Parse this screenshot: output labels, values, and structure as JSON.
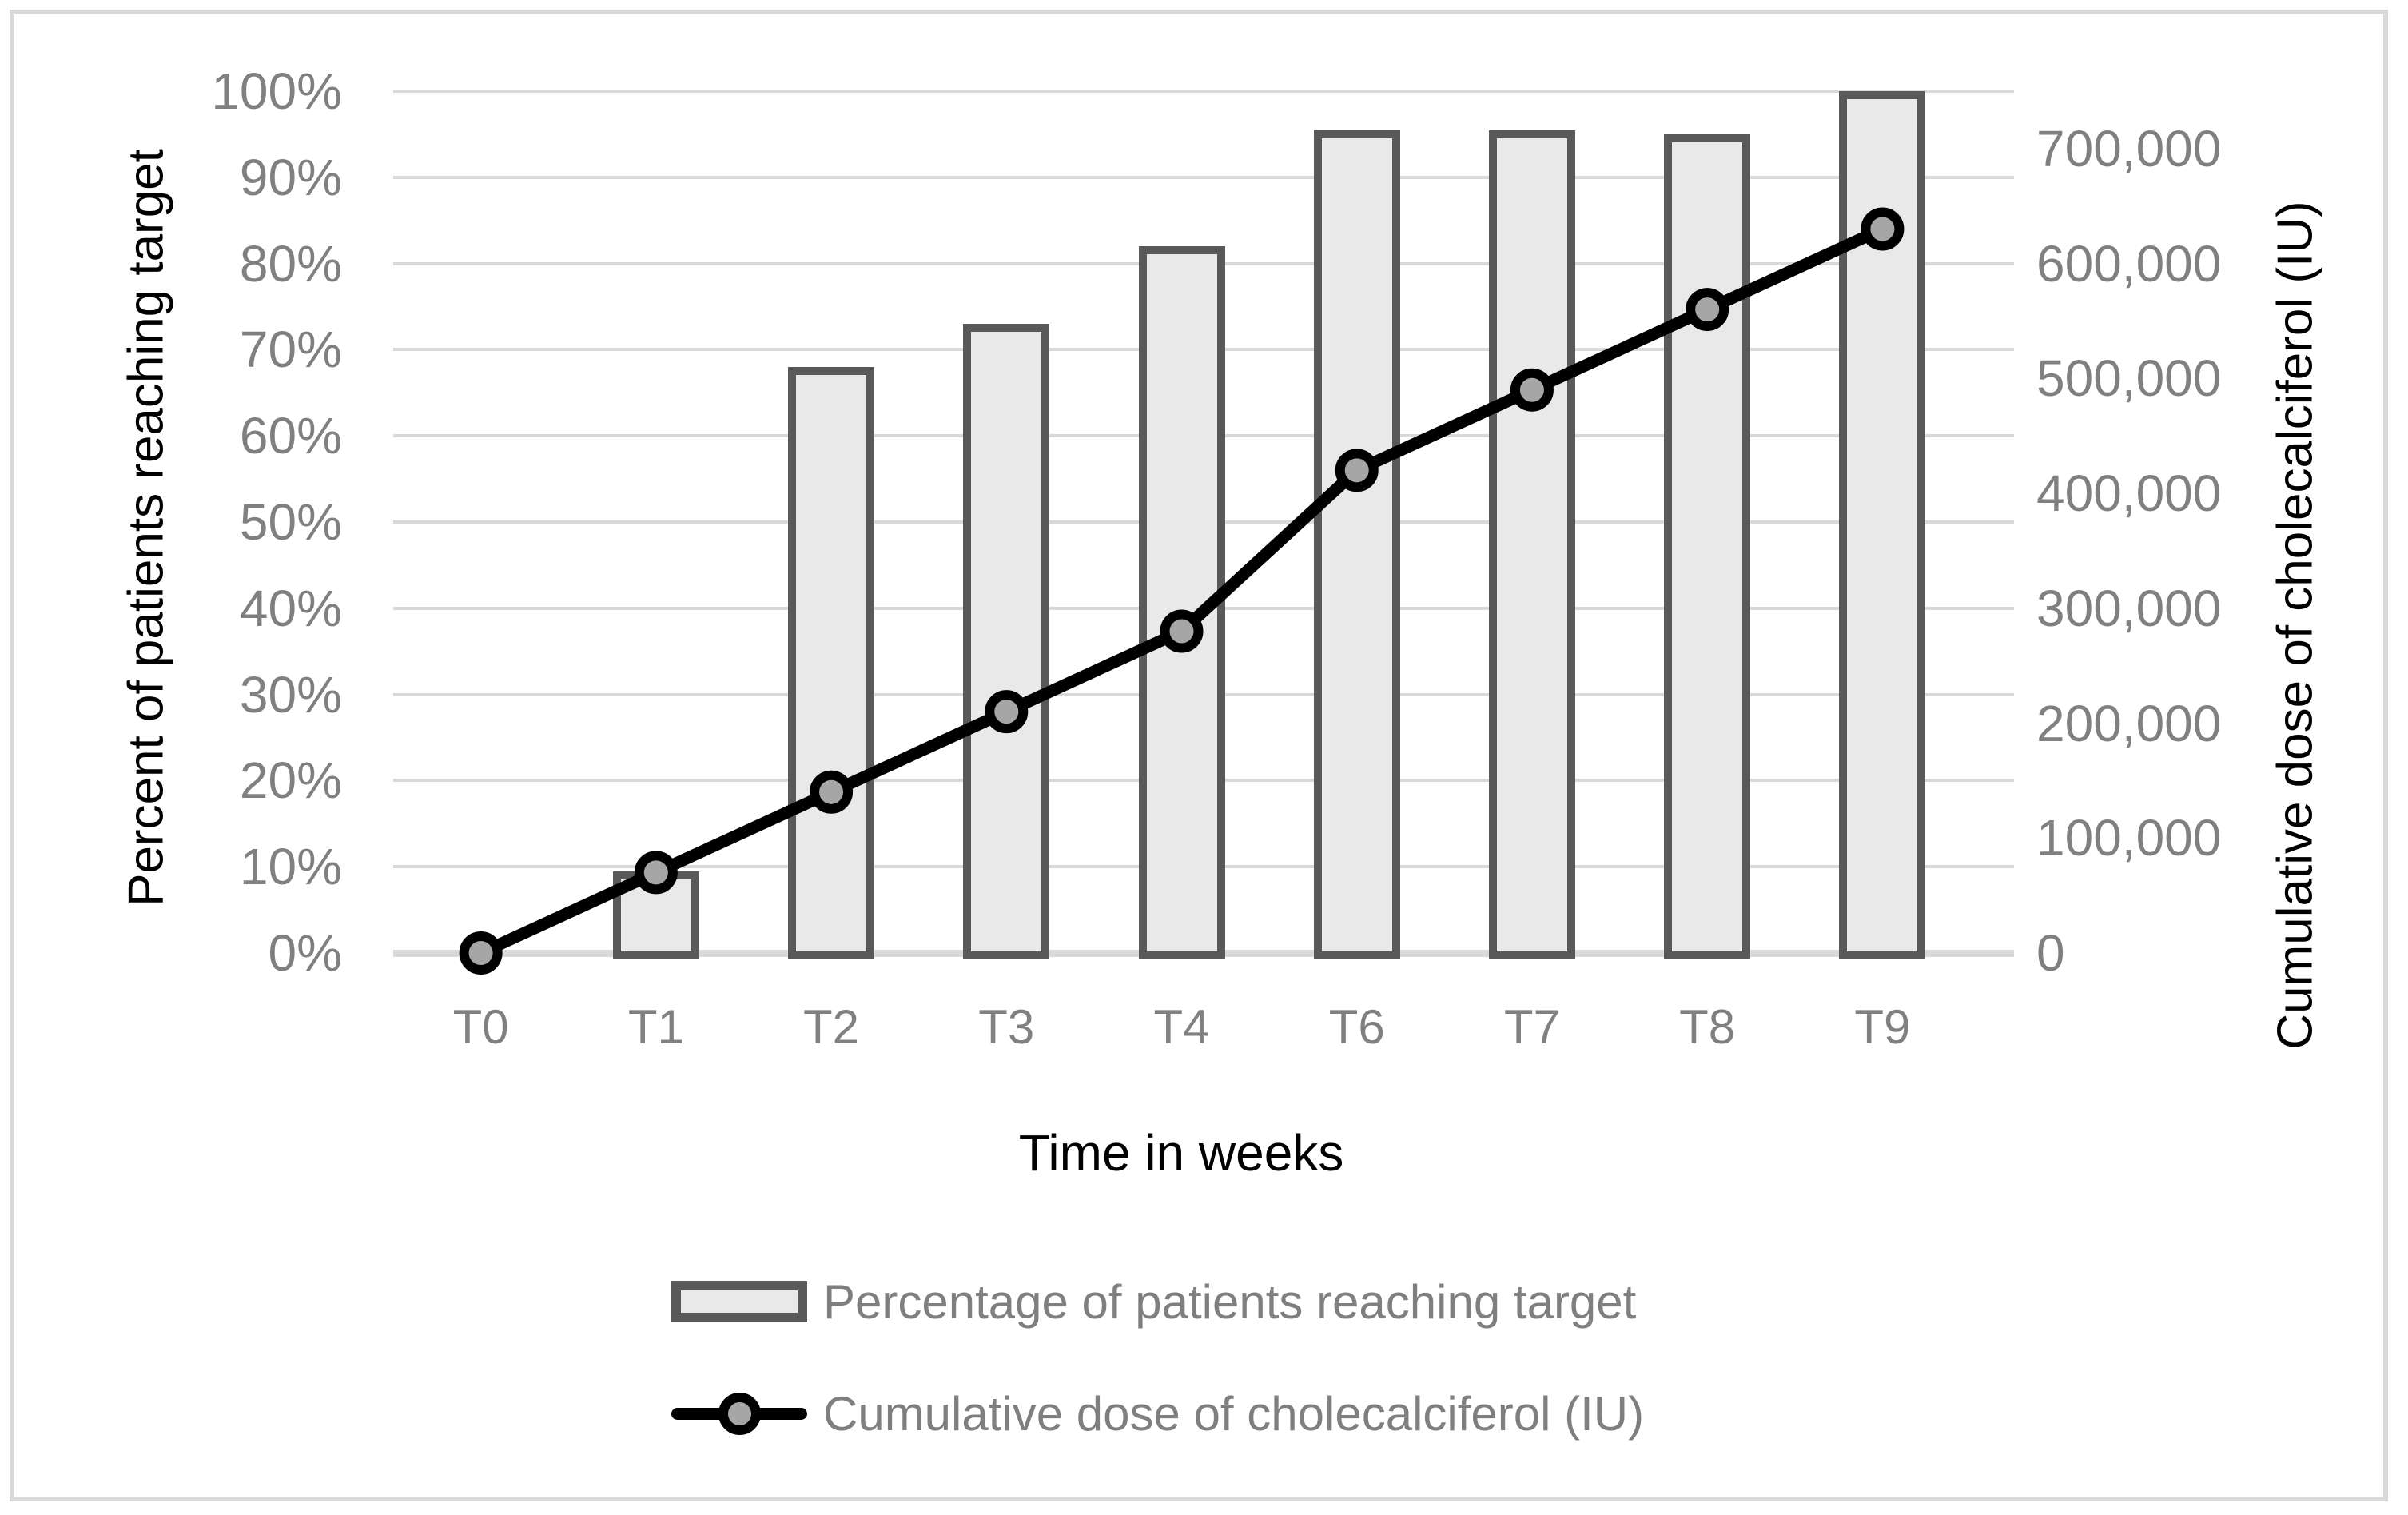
{
  "chart_data": {
    "type": "combo-bar-line",
    "categories": [
      "T0",
      "T1",
      "T2",
      "T3",
      "T4",
      "T6",
      "T7",
      "T8",
      "T9"
    ],
    "series": [
      {
        "name": "Percentage of patients reaching target",
        "type": "bar",
        "axis": "left",
        "unit": "%",
        "values": [
          0,
          9.5,
          68,
          73,
          82,
          95.5,
          95.5,
          95,
          100
        ]
      },
      {
        "name": "Cumulative dose of cholecalciferol (IU)",
        "type": "line",
        "axis": "right",
        "unit": "IU",
        "values": [
          0,
          70000,
          140000,
          210000,
          280000,
          420000,
          490000,
          560000,
          630000
        ]
      }
    ],
    "left_axis": {
      "title": "Percent of patients reaching target",
      "min": 0,
      "max": 100,
      "step": 10,
      "tick_labels": [
        "0%",
        "10%",
        "20%",
        "30%",
        "40%",
        "50%",
        "60%",
        "70%",
        "80%",
        "90%",
        "100%"
      ]
    },
    "right_axis": {
      "title": "Cumulative dose of cholecalciferol (IU)",
      "min": 0,
      "scale_max": 750000,
      "label_step": 100000,
      "tick_labels": [
        "0",
        "100,000",
        "200,000",
        "300,000",
        "400,000",
        "500,000",
        "600,000",
        "700,000"
      ]
    },
    "x_axis": {
      "title": "Time in weeks"
    },
    "legend": {
      "position": "bottom",
      "entries": [
        "Percentage of patients reaching target",
        "Cumulative dose of cholecalciferol (IU)"
      ]
    },
    "grid": true
  },
  "style": {
    "background": "#ffffff",
    "frame_border": "#d9d9d9",
    "gridline": "#d9d9d9",
    "bar_fill": "#e9e9e9",
    "bar_border": "#595959",
    "line_color": "#000000",
    "marker_fill": "#a6a6a6",
    "tick_label_color": "#808080",
    "axis_title_color": "#000000",
    "legend_text_color": "#7f7f7f"
  }
}
